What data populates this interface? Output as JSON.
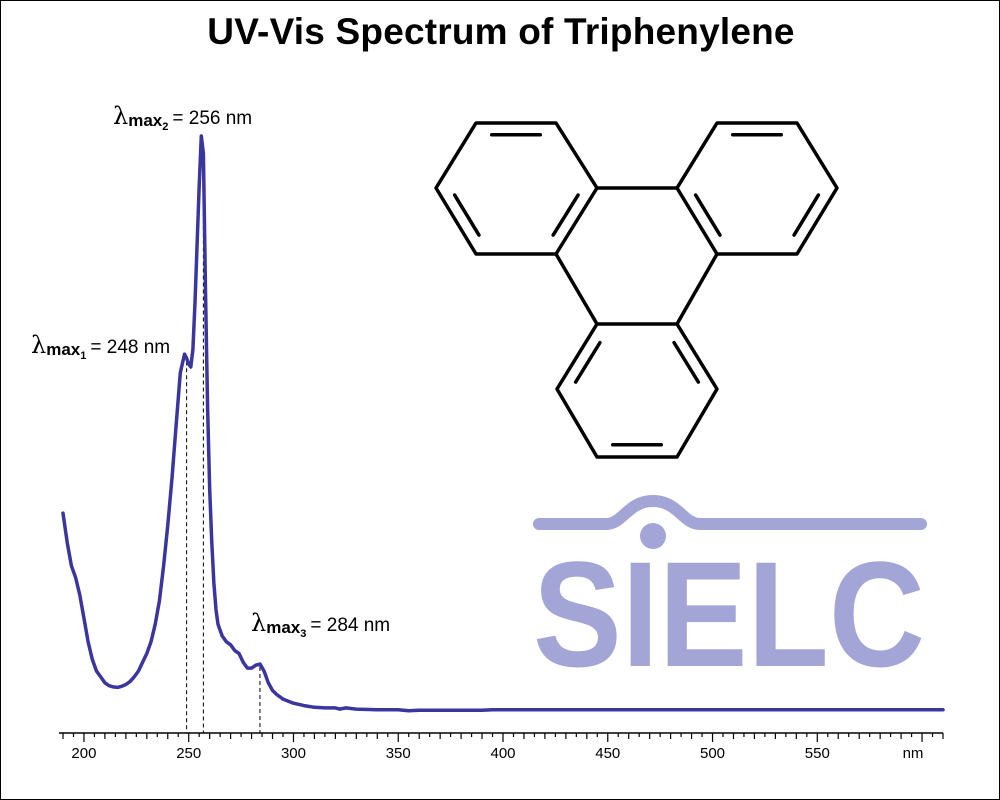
{
  "title": "UV-Vis Spectrum of Triphenylene",
  "logo": {
    "text": "SIELC",
    "color": "#a3a5d6"
  },
  "colors": {
    "spectrum": "#3b35a0",
    "axis": "#000000",
    "structure": "#000000"
  },
  "molecule_icon": "triphenylene-structure-icon",
  "chart_data": {
    "type": "line",
    "title": "UV-Vis Spectrum of Triphenylene",
    "xlabel": "",
    "xunit": "nm",
    "ylabel": "",
    "xlim": [
      190,
      610
    ],
    "ylim": [
      0,
      1
    ],
    "grid": false,
    "xticks": [
      200,
      250,
      300,
      350,
      400,
      450,
      500,
      550
    ],
    "tick_unit_label": "nm",
    "series": [
      {
        "name": "",
        "x": [
          190,
          192,
          194,
          196,
          198,
          200,
          202,
          204,
          206,
          208,
          210,
          212,
          214,
          216,
          218,
          220,
          222,
          224,
          226,
          228,
          230,
          232,
          234,
          236,
          238,
          240,
          242,
          244,
          246,
          248,
          249,
          250,
          251,
          252,
          253,
          254,
          255,
          256,
          257,
          258,
          259,
          260,
          261,
          262,
          263,
          264,
          266,
          268,
          270,
          272,
          274,
          276,
          278,
          280,
          282,
          284,
          286,
          288,
          290,
          292,
          295,
          300,
          305,
          310,
          315,
          320,
          322,
          325,
          330,
          340,
          350,
          355,
          360,
          380,
          390,
          395,
          400,
          450,
          500,
          550,
          610
        ],
        "y": [
          0.34,
          0.29,
          0.25,
          0.23,
          0.2,
          0.16,
          0.12,
          0.09,
          0.07,
          0.06,
          0.05,
          0.045,
          0.043,
          0.042,
          0.044,
          0.047,
          0.052,
          0.06,
          0.07,
          0.085,
          0.1,
          0.12,
          0.15,
          0.19,
          0.25,
          0.32,
          0.4,
          0.49,
          0.58,
          0.612,
          0.605,
          0.595,
          0.59,
          0.62,
          0.7,
          0.8,
          0.9,
          0.985,
          0.955,
          0.72,
          0.52,
          0.38,
          0.29,
          0.22,
          0.175,
          0.15,
          0.13,
          0.12,
          0.115,
          0.105,
          0.1,
          0.085,
          0.075,
          0.075,
          0.08,
          0.082,
          0.07,
          0.05,
          0.037,
          0.03,
          0.022,
          0.015,
          0.011,
          0.008,
          0.007,
          0.007,
          0.005,
          0.007,
          0.005,
          0.004,
          0.004,
          0.002,
          0.003,
          0.003,
          0.003,
          0.004,
          0.004,
          0.004,
          0.004,
          0.004,
          0.004
        ]
      }
    ],
    "annotations": [
      {
        "symbol": "λ",
        "label": "max",
        "sub": "1",
        "value_text": "= 248 nm",
        "x": 249
      },
      {
        "symbol": "λ",
        "label": "max",
        "sub": "2",
        "value_text": "= 256 nm",
        "x": 257
      },
      {
        "symbol": "λ",
        "label": "max",
        "sub": "3",
        "value_text": "= 284 nm",
        "x": 284
      }
    ]
  }
}
